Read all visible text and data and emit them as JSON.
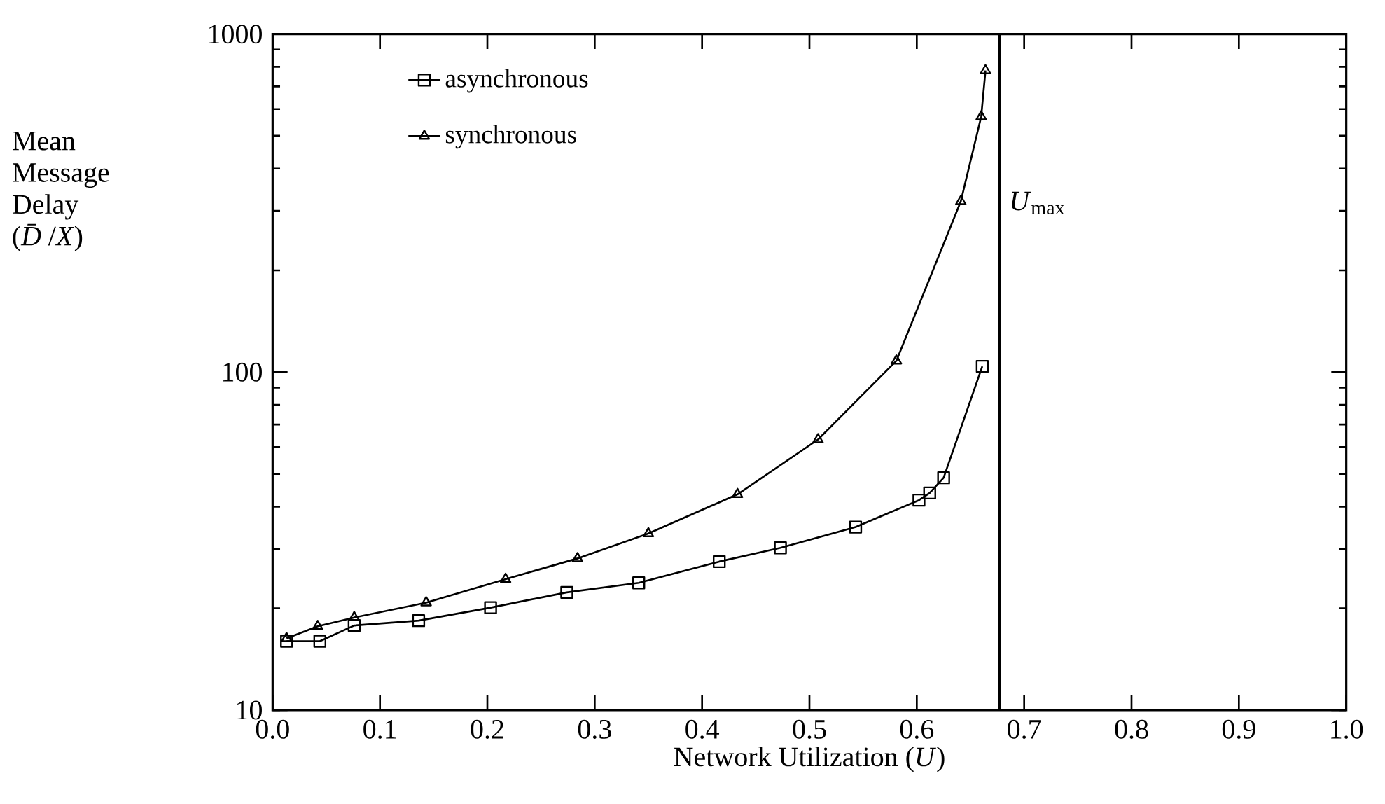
{
  "chart_data": {
    "type": "line",
    "xlabel": "Network Utilization (*U*)",
    "ylabel": "Mean Message Delay (*D̄*/*X*)",
    "log": "y",
    "xlim": [
      0,
      1
    ],
    "ylim": [
      10,
      1000
    ],
    "xticks": [
      {
        "value": 0,
        "label": "0.0"
      },
      0.1,
      0.2,
      0.3,
      0.4,
      0.5,
      0.6,
      0.7,
      0.8,
      0.9,
      {
        "value": 1,
        "label": "1.0"
      }
    ],
    "yticks": [
      10,
      100,
      1000
    ],
    "legend": "top left",
    "line_style": "solid",
    "ref_lines": [
      {
        "axis": "x",
        "value": 0.677,
        "label": "*U*$_{max}$",
        "color": "#000000"
      }
    ],
    "series": [
      {
        "name": "asynchronous",
        "color": "#000000",
        "marker": "square",
        "x": [
          0.013,
          0.044,
          0.076,
          0.136,
          0.203,
          0.274,
          0.341,
          0.416,
          0.473,
          0.543,
          0.602,
          0.612,
          0.625,
          0.661
        ],
        "values": [
          16.0,
          16.0,
          17.8,
          18.4,
          20.1,
          22.3,
          23.8,
          27.5,
          30.2,
          34.8,
          41.8,
          43.9,
          48.7,
          104
        ]
      },
      {
        "name": "synchronous",
        "color": "#000000",
        "marker": "triangle",
        "x": [
          0.013,
          0.042,
          0.076,
          0.143,
          0.217,
          0.284,
          0.35,
          0.433,
          0.508,
          0.581,
          0.641,
          0.66,
          0.664
        ],
        "values": [
          16.3,
          17.7,
          18.8,
          20.8,
          24.4,
          28.1,
          33.3,
          43.5,
          63.2,
          108,
          320,
          570,
          780
        ]
      }
    ]
  }
}
